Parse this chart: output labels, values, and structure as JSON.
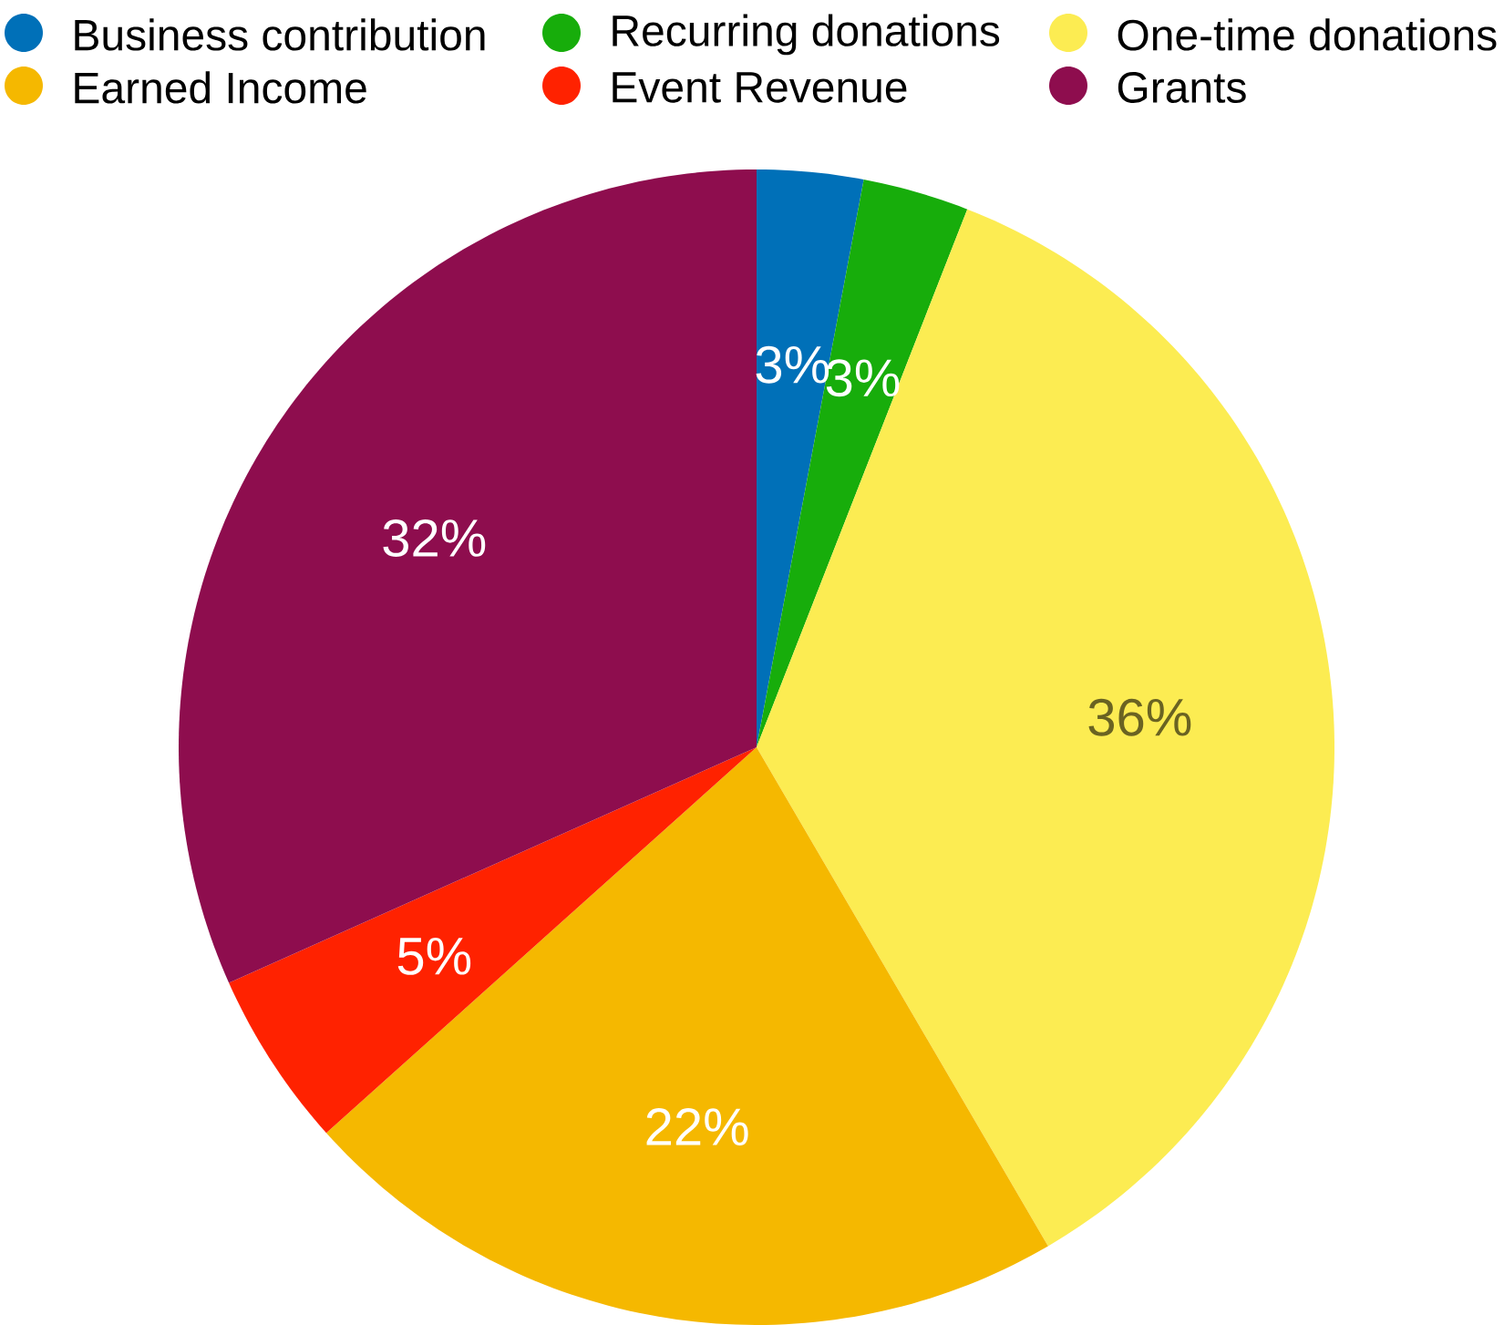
{
  "chart_data": {
    "type": "pie",
    "categories": [
      "Business contribution",
      "Recurring donations",
      "One-time donations",
      "Earned Income",
      "Event Revenue",
      "Grants"
    ],
    "values": [
      3,
      3,
      36,
      22,
      5,
      32
    ],
    "value_labels": [
      "3%",
      "3%",
      "36%",
      "22%",
      "5%",
      "32%"
    ],
    "colors": [
      "#0070b8",
      "#17ad0b",
      "#fcec52",
      "#f5b800",
      "#ff2200",
      "#8e0d4e"
    ],
    "legend": "top"
  }
}
